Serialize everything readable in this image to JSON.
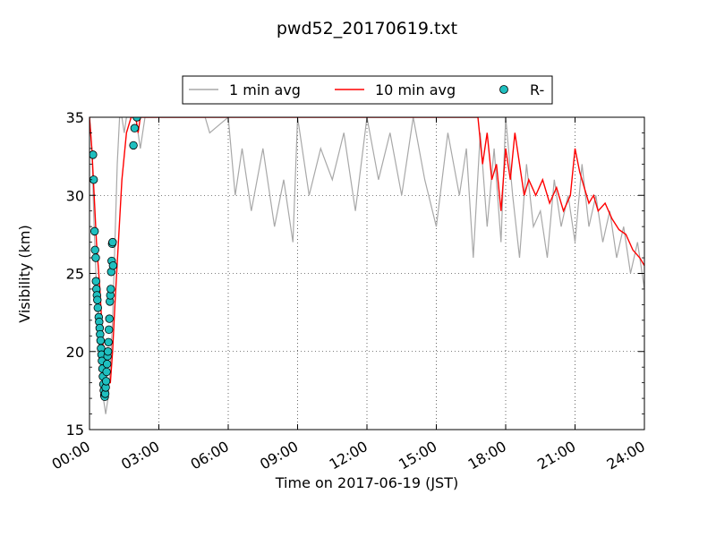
{
  "chart_data": {
    "type": "line",
    "title": "pwd52_20170619.txt",
    "xlabel": "Time on 2017-06-19 (JST)",
    "ylabel": "Visibility (km)",
    "xlim": [
      0,
      24
    ],
    "ylim": [
      15,
      35
    ],
    "x_ticks": [
      0,
      3,
      6,
      9,
      12,
      15,
      18,
      21,
      24
    ],
    "x_tick_labels": [
      "00:00",
      "03:00",
      "06:00",
      "09:00",
      "12:00",
      "15:00",
      "18:00",
      "21:00",
      "24:00"
    ],
    "y_ticks": [
      15,
      20,
      25,
      30,
      35
    ],
    "y_tick_labels": [
      "15",
      "20",
      "25",
      "30",
      "35"
    ],
    "grid": true,
    "legend_position": "top-center",
    "legend": [
      {
        "label": "1 min avg",
        "color": "#a8a8a8",
        "kind": "line"
      },
      {
        "label": "10 min avg",
        "color": "#ff0000",
        "kind": "line"
      },
      {
        "label": "R-",
        "color": "#1fbfbf",
        "kind": "marker"
      }
    ],
    "series": [
      {
        "name": "1 min avg",
        "color": "#a8a8a8",
        "x": [
          0.0,
          0.1,
          0.2,
          0.3,
          0.4,
          0.5,
          0.6,
          0.7,
          0.8,
          0.9,
          1.0,
          1.1,
          1.2,
          1.3,
          1.4,
          1.5,
          1.6,
          1.8,
          2.0,
          2.2,
          2.4,
          2.6,
          3.0,
          4.0,
          5.0,
          5.2,
          6.0,
          6.3,
          6.6,
          7.0,
          7.5,
          8.0,
          8.4,
          8.8,
          9.0,
          9.5,
          10.0,
          10.5,
          11.0,
          11.5,
          12.0,
          12.5,
          13.0,
          13.5,
          14.0,
          14.5,
          15.0,
          15.5,
          16.0,
          16.3,
          16.6,
          16.9,
          17.2,
          17.5,
          17.8,
          18.0,
          18.3,
          18.6,
          18.9,
          19.2,
          19.5,
          19.8,
          20.1,
          20.4,
          20.7,
          21.0,
          21.3,
          21.6,
          21.9,
          22.2,
          22.5,
          22.8,
          23.1,
          23.4,
          23.7,
          24.0
        ],
        "values": [
          35,
          33,
          28,
          24,
          22,
          19,
          17,
          16,
          17,
          19,
          22,
          27,
          32,
          35,
          35,
          34,
          35,
          35,
          35,
          33,
          35,
          35,
          35,
          35,
          35,
          34,
          35,
          30,
          33,
          29,
          33,
          28,
          31,
          27,
          35,
          30,
          33,
          31,
          34,
          29,
          35,
          31,
          34,
          30,
          35,
          31,
          28,
          34,
          30,
          33,
          26,
          34,
          28,
          33,
          27,
          35,
          30,
          26,
          32,
          28,
          29,
          26,
          31,
          28,
          30,
          27,
          32,
          28,
          30,
          27,
          29,
          26,
          28,
          25,
          27,
          24
        ]
      },
      {
        "name": "10 min avg",
        "color": "#ff0000",
        "x": [
          0.0,
          0.1,
          0.2,
          0.3,
          0.45,
          0.6,
          0.75,
          0.9,
          1.0,
          1.1,
          1.25,
          1.4,
          1.6,
          1.8,
          2.0,
          2.1,
          2.2,
          2.3,
          2.4,
          2.5,
          16.8,
          17.0,
          17.2,
          17.4,
          17.6,
          17.8,
          18.0,
          18.2,
          18.4,
          18.6,
          18.8,
          19.0,
          19.3,
          19.6,
          19.9,
          20.2,
          20.5,
          20.8,
          21.0,
          21.2,
          21.4,
          21.6,
          21.8,
          22.0,
          22.3,
          22.6,
          22.9,
          23.2,
          23.5,
          23.8,
          24.0
        ],
        "values": [
          35,
          33,
          30,
          27,
          24,
          20,
          18,
          18,
          20,
          23,
          27,
          31,
          34,
          35,
          35,
          34,
          35,
          35,
          35,
          35,
          35,
          32,
          34,
          31,
          32,
          29,
          33,
          31,
          34,
          32,
          30,
          31,
          30,
          31,
          29.5,
          30.5,
          29,
          30,
          33,
          31.5,
          30.5,
          29.5,
          30,
          29,
          29.5,
          28.5,
          27.8,
          27.5,
          26.5,
          26,
          25.5
        ]
      },
      {
        "name": "R-",
        "color": "#1fbfbf",
        "x": [
          0.15,
          0.18,
          0.22,
          0.24,
          0.27,
          0.28,
          0.3,
          0.32,
          0.34,
          0.36,
          0.4,
          0.42,
          0.44,
          0.46,
          0.48,
          0.5,
          0.52,
          0.54,
          0.56,
          0.58,
          0.6,
          0.62,
          0.64,
          0.66,
          0.68,
          0.7,
          0.72,
          0.74,
          0.76,
          0.78,
          0.8,
          0.82,
          0.84,
          0.86,
          0.88,
          0.9,
          0.92,
          0.94,
          0.96,
          0.98,
          1.0,
          1.02,
          1.9,
          1.95,
          2.05
        ],
        "values": [
          32.6,
          31.0,
          27.7,
          26.5,
          26.0,
          24.5,
          24.0,
          23.6,
          23.3,
          22.8,
          22.2,
          21.9,
          21.5,
          21.1,
          20.7,
          20.2,
          19.8,
          19.4,
          18.9,
          18.4,
          17.9,
          17.5,
          17.2,
          17.1,
          17.3,
          17.7,
          18.1,
          18.7,
          19.2,
          19.7,
          20.0,
          20.6,
          21.4,
          22.1,
          23.2,
          23.6,
          24.0,
          25.1,
          25.8,
          26.9,
          27.0,
          25.5,
          33.2,
          34.3,
          35.0
        ]
      }
    ]
  }
}
